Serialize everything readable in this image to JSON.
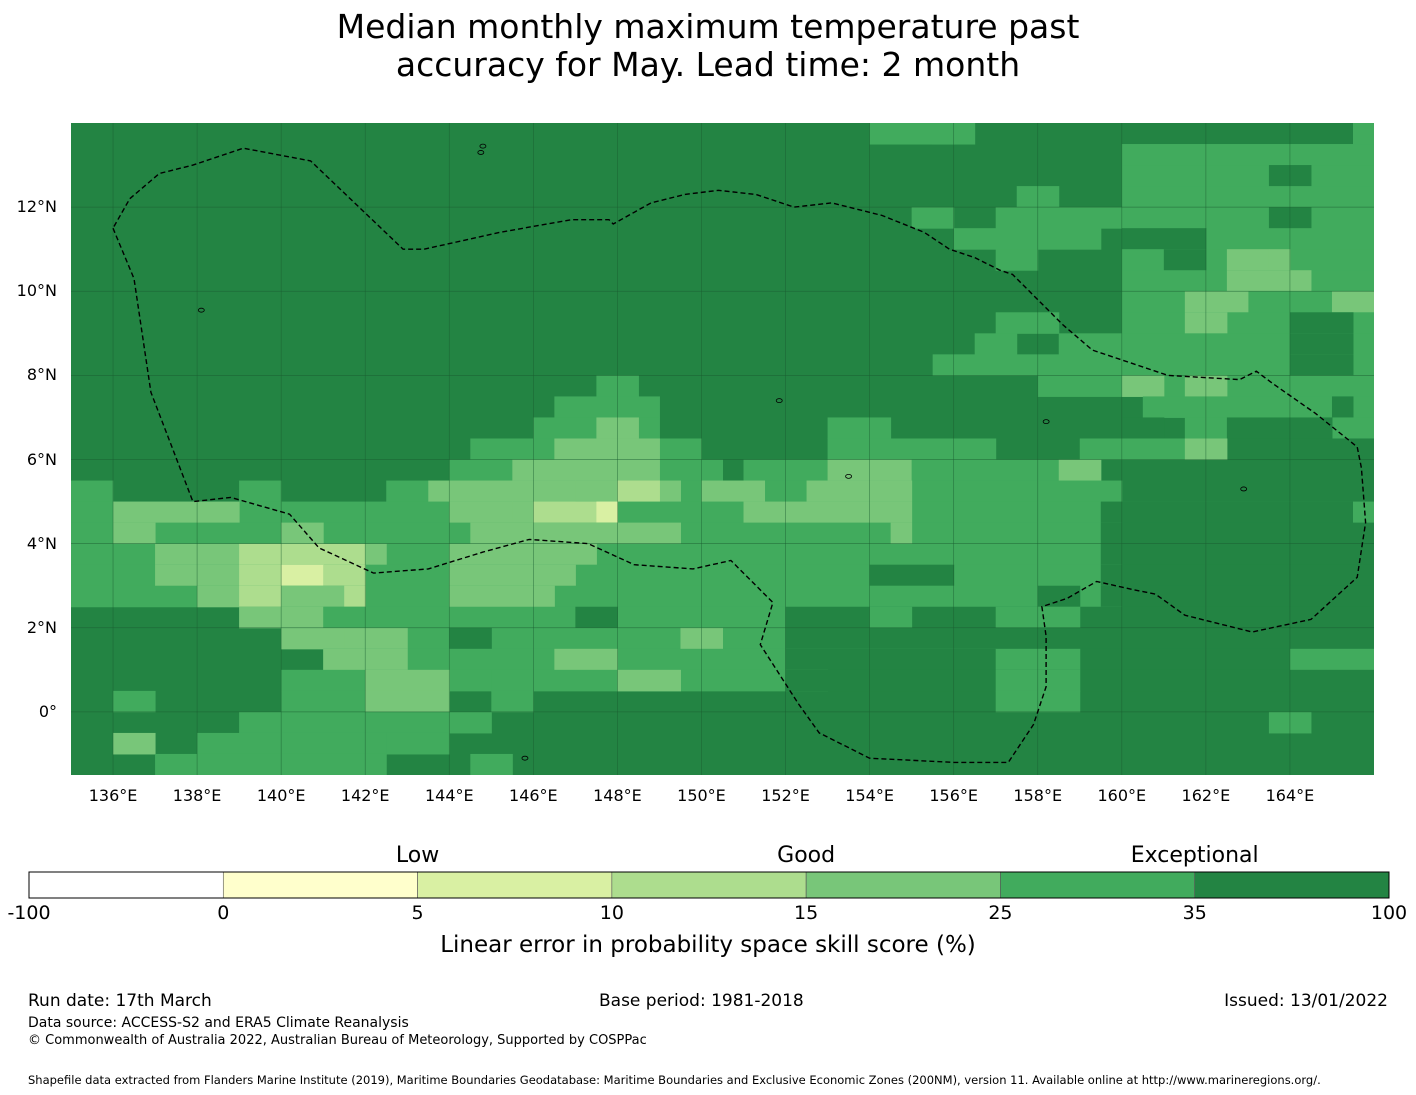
{
  "title": {
    "line1": "Median monthly maximum temperature past",
    "line2": "accuracy for May. Lead time: 2 month"
  },
  "map": {
    "lon_range": [
      135,
      166
    ],
    "lat_range": [
      -1.5,
      14
    ],
    "lon_ticks": [
      "136°E",
      "138°E",
      "140°E",
      "142°E",
      "144°E",
      "146°E",
      "148°E",
      "150°E",
      "152°E",
      "154°E",
      "156°E",
      "158°E",
      "160°E",
      "162°E",
      "164°E"
    ],
    "lon_tick_values": [
      136,
      138,
      140,
      142,
      144,
      146,
      148,
      150,
      152,
      154,
      156,
      158,
      160,
      162,
      164
    ],
    "lat_ticks": [
      "12°N",
      "10°N",
      "8°N",
      "6°N",
      "4°N",
      "2°N",
      "0°"
    ],
    "lat_tick_values": [
      12,
      10,
      8,
      6,
      4,
      2,
      0
    ],
    "default_class": 7,
    "lighter_cells": [
      {
        "lat": 13.5,
        "lon": [
          [
            154,
            156,
            6
          ],
          [
            155.5,
            156.5,
            6
          ],
          [
            165.5,
            166,
            6
          ]
        ]
      },
      {
        "lat": 13,
        "lon": [
          [
            160,
            166,
            6
          ]
        ]
      },
      {
        "lat": 12.5,
        "lon": [
          [
            160,
            166,
            6
          ],
          [
            163.5,
            164.5,
            7
          ]
        ]
      },
      {
        "lat": 12,
        "lon": [
          [
            157.5,
            158.5,
            6
          ],
          [
            160,
            166,
            6
          ]
        ]
      },
      {
        "lat": 11.5,
        "lon": [
          [
            155,
            156,
            6
          ],
          [
            157,
            166,
            6
          ],
          [
            163.5,
            164.5,
            7
          ]
        ]
      },
      {
        "lat": 11,
        "lon": [
          [
            156,
            159.5,
            6
          ],
          [
            160,
            166,
            6
          ],
          [
            160,
            162,
            7
          ]
        ]
      },
      {
        "lat": 10.5,
        "lon": [
          [
            157,
            158,
            6
          ],
          [
            160,
            166,
            6
          ],
          [
            161,
            162,
            7
          ],
          [
            162.5,
            163.5,
            5
          ],
          [
            163.5,
            164,
            5
          ]
        ]
      },
      {
        "lat": 10,
        "lon": [
          [
            160,
            166,
            6
          ],
          [
            162.5,
            164.5,
            5
          ]
        ]
      },
      {
        "lat": 9.5,
        "lon": [
          [
            160,
            166,
            6
          ],
          [
            161.5,
            163,
            5
          ],
          [
            165,
            166,
            5
          ]
        ]
      },
      {
        "lat": 9,
        "lon": [
          [
            157,
            158.5,
            6
          ],
          [
            160,
            166,
            6
          ],
          [
            161.5,
            162.5,
            5
          ],
          [
            164,
            165.5,
            7
          ]
        ]
      },
      {
        "lat": 8.5,
        "lon": [
          [
            156.5,
            157.5,
            6
          ],
          [
            158.5,
            166,
            6
          ],
          [
            164,
            165.5,
            7
          ]
        ]
      },
      {
        "lat": 8,
        "lon": [
          [
            155.5,
            166,
            6
          ],
          [
            164,
            165.5,
            7
          ]
        ]
      },
      {
        "lat": 7.5,
        "lon": [
          [
            147.5,
            148.5,
            6
          ],
          [
            158,
            166,
            6
          ],
          [
            160,
            161,
            5
          ],
          [
            161.5,
            162.5,
            5
          ]
        ]
      },
      {
        "lat": 7,
        "lon": [
          [
            146.5,
            149,
            6
          ],
          [
            160.5,
            166,
            6
          ],
          [
            165,
            165.5,
            7
          ]
        ]
      },
      {
        "lat": 6.5,
        "lon": [
          [
            146,
            149,
            6
          ],
          [
            147.5,
            148.5,
            5
          ],
          [
            153,
            154.5,
            6
          ],
          [
            160,
            161,
            7
          ],
          [
            161.5,
            166,
            6
          ],
          [
            162.5,
            165,
            7
          ]
        ]
      },
      {
        "lat": 6,
        "lon": [
          [
            144.5,
            150,
            6
          ],
          [
            146.5,
            149,
            5
          ],
          [
            153,
            157,
            6
          ],
          [
            159,
            160,
            6
          ],
          [
            161.5,
            166,
            7
          ],
          [
            160,
            161.5,
            6
          ],
          [
            161.5,
            162.5,
            5
          ]
        ]
      },
      {
        "lat": 5.5,
        "lon": [
          [
            144,
            150.5,
            6
          ],
          [
            145.5,
            149,
            5
          ],
          [
            151,
            154.5,
            6
          ],
          [
            153,
            155,
            5
          ],
          [
            155,
            159.5,
            6
          ],
          [
            158.5,
            159.5,
            5
          ]
        ]
      },
      {
        "lat": 5,
        "lon": [
          [
            135,
            136,
            6
          ],
          [
            139,
            140,
            6
          ],
          [
            142.5,
            160,
            6
          ],
          [
            143.5,
            147,
            5
          ],
          [
            147,
            149.5,
            5
          ],
          [
            148,
            149,
            4
          ],
          [
            150,
            151.5,
            5
          ],
          [
            152.5,
            155,
            5
          ]
        ]
      },
      {
        "lat": 4.5,
        "lon": [
          [
            135,
            166,
            6
          ],
          [
            136,
            139,
            5
          ],
          [
            144,
            145.5,
            5
          ],
          [
            145.5,
            147,
            5
          ],
          [
            146,
            148,
            4
          ],
          [
            147.5,
            148,
            3
          ],
          [
            151,
            155,
            5
          ],
          [
            159.5,
            166,
            7
          ],
          [
            165.5,
            166,
            6
          ]
        ]
      },
      {
        "lat": 4,
        "lon": [
          [
            135,
            160,
            6
          ],
          [
            136,
            137,
            5
          ],
          [
            140,
            141,
            5
          ],
          [
            144.5,
            149.5,
            5
          ],
          [
            154.5,
            155,
            5
          ],
          [
            159.5,
            166,
            7
          ]
        ]
      },
      {
        "lat": 3.5,
        "lon": [
          [
            135,
            160,
            6
          ],
          [
            137,
            139,
            5
          ],
          [
            139,
            142,
            4
          ],
          [
            142,
            142.5,
            5
          ],
          [
            144,
            147.5,
            5
          ],
          [
            159.5,
            166,
            7
          ]
        ]
      },
      {
        "lat": 3,
        "lon": [
          [
            135,
            160,
            6
          ],
          [
            137,
            139,
            5
          ],
          [
            139,
            140,
            4
          ],
          [
            140,
            141,
            3
          ],
          [
            141,
            142,
            4
          ],
          [
            144,
            147,
            5
          ],
          [
            154,
            156,
            7
          ],
          [
            159.5,
            166,
            7
          ]
        ]
      },
      {
        "lat": 2.5,
        "lon": [
          [
            135,
            160,
            6
          ],
          [
            138,
            139,
            5
          ],
          [
            139,
            140,
            4
          ],
          [
            140,
            141.5,
            5
          ],
          [
            141.5,
            142,
            4
          ],
          [
            144,
            146.5,
            5
          ],
          [
            158,
            159,
            7
          ],
          [
            159.5,
            166,
            7
          ]
        ]
      },
      {
        "lat": 2,
        "lon": [
          [
            139,
            160,
            6
          ],
          [
            139,
            140,
            5
          ],
          [
            140,
            141,
            5
          ],
          [
            141,
            142,
            6
          ],
          [
            147,
            148,
            7
          ],
          [
            152,
            166,
            7
          ],
          [
            154,
            155,
            6
          ],
          [
            157,
            159,
            6
          ]
        ]
      },
      {
        "lat": 1.5,
        "lon": [
          [
            140,
            156,
            6
          ],
          [
            140,
            141.5,
            5
          ],
          [
            141.5,
            143,
            5
          ],
          [
            144,
            145,
            7
          ],
          [
            149.5,
            150.5,
            5
          ],
          [
            152,
            166,
            7
          ]
        ]
      },
      {
        "lat": 1,
        "lon": [
          [
            141,
            157,
            6
          ],
          [
            141,
            143,
            5
          ],
          [
            146.5,
            148,
            5
          ],
          [
            152,
            166,
            7
          ],
          [
            157,
            159,
            6
          ],
          [
            164,
            166,
            6
          ]
        ]
      },
      {
        "lat": 0.5,
        "lon": [
          [
            140,
            153,
            6
          ],
          [
            142,
            144,
            5
          ],
          [
            148,
            149.5,
            5
          ],
          [
            145,
            146,
            6
          ],
          [
            152,
            166,
            7
          ],
          [
            157,
            159,
            6
          ]
        ]
      },
      {
        "lat": 0,
        "lon": [
          [
            136,
            137,
            6
          ],
          [
            140,
            142,
            6
          ],
          [
            142,
            144,
            5
          ],
          [
            145,
            146,
            6
          ],
          [
            157,
            159,
            6
          ]
        ]
      },
      {
        "lat": -0.5,
        "lon": [
          [
            139,
            145,
            6
          ],
          [
            163.5,
            164.5,
            6
          ]
        ]
      },
      {
        "lat": -1,
        "lon": [
          [
            138,
            142.5,
            6
          ],
          [
            136,
            137,
            5
          ],
          [
            142.5,
            144,
            6
          ]
        ]
      },
      {
        "lat": -1.5,
        "lon": [
          [
            137,
            142.5,
            6
          ],
          [
            144.5,
            145.5,
            6
          ]
        ]
      }
    ],
    "boundary": [
      [
        136,
        11.5
      ],
      [
        136.5,
        10.3
      ],
      [
        136.9,
        7.6
      ],
      [
        137.9,
        5
      ],
      [
        138.8,
        5.1
      ],
      [
        140.2,
        4.7
      ],
      [
        140.9,
        3.9
      ],
      [
        142.2,
        3.3
      ],
      [
        143.5,
        3.4
      ],
      [
        144.8,
        3.8
      ],
      [
        145.9,
        4.1
      ],
      [
        147.3,
        4
      ],
      [
        148.4,
        3.5
      ],
      [
        149.8,
        3.4
      ],
      [
        150.7,
        3.6
      ],
      [
        151.7,
        2.6
      ],
      [
        151.4,
        1.6
      ],
      [
        152.3,
        0.2
      ],
      [
        152.8,
        -0.5
      ],
      [
        154,
        -1.1
      ],
      [
        156,
        -1.2
      ],
      [
        157.3,
        -1.2
      ],
      [
        157.9,
        -0.3
      ],
      [
        158.2,
        0.6
      ],
      [
        158.2,
        1.8
      ],
      [
        158.1,
        2.5
      ],
      [
        158.7,
        2.7
      ],
      [
        159.4,
        3.1
      ],
      [
        160.3,
        2.9
      ],
      [
        160.8,
        2.8
      ],
      [
        161.5,
        2.3
      ],
      [
        163.1,
        1.9
      ],
      [
        164.5,
        2.2
      ],
      [
        165.6,
        3.2
      ],
      [
        165.8,
        4.5
      ],
      [
        165.7,
        5.8
      ],
      [
        165.6,
        6.3
      ],
      [
        164.6,
        7.1
      ],
      [
        163.6,
        7.8
      ],
      [
        163.2,
        8.1
      ],
      [
        162.8,
        7.9
      ],
      [
        161.1,
        8
      ],
      [
        159.3,
        8.6
      ],
      [
        158.6,
        9.2
      ],
      [
        157.4,
        10.4
      ],
      [
        157.1,
        10.5
      ],
      [
        156.5,
        10.8
      ],
      [
        155.9,
        11
      ],
      [
        155.3,
        11.4
      ],
      [
        154.3,
        11.8
      ],
      [
        153.1,
        12.1
      ],
      [
        152.2,
        12
      ],
      [
        151.3,
        12.3
      ],
      [
        150.4,
        12.4
      ],
      [
        149.6,
        12.3
      ],
      [
        148.8,
        12.1
      ],
      [
        147.9,
        11.6
      ],
      [
        147.8,
        11.7
      ],
      [
        146.9,
        11.7
      ],
      [
        145.2,
        11.4
      ],
      [
        143.4,
        11
      ],
      [
        142.9,
        11
      ],
      [
        140.7,
        13.1
      ],
      [
        139.1,
        13.4
      ],
      [
        137.9,
        13
      ],
      [
        137.1,
        12.8
      ],
      [
        136.4,
        12.2
      ],
      [
        136,
        11.5
      ]
    ]
  },
  "colorbar": {
    "categories": [
      {
        "label": "Low",
        "at": 2
      },
      {
        "label": "Good",
        "at": 4
      },
      {
        "label": "Exceptional",
        "at": 6
      }
    ],
    "ticks": [
      "-100",
      "0",
      "5",
      "10",
      "15",
      "25",
      "35",
      "100"
    ],
    "colors": [
      "#ffffff",
      "#ffffcc",
      "#d9f0a3",
      "#addd8e",
      "#78c679",
      "#41ab5d",
      "#238443"
    ],
    "title": "Linear error in probability space skill score (%)"
  },
  "footer": {
    "run_date": "Run date: 17th March",
    "base_period": "Base period: 1981-2018",
    "issued": "Issued: 13/01/2022",
    "data_source": "Data source: ACCESS-S2 and ERA5 Climate Reanalysis",
    "copyright": "© Commonwealth of Australia 2022, Australian Bureau of Meteorology, Supported by COSPPac",
    "shapefile": "Shapefile data extracted from Flanders Marine Institute (2019), Maritime Boundaries Geodatabase: Maritime Boundaries and Exclusive Economic Zones (200NM), version 11. Available online at http://www.marineregions.org/."
  }
}
